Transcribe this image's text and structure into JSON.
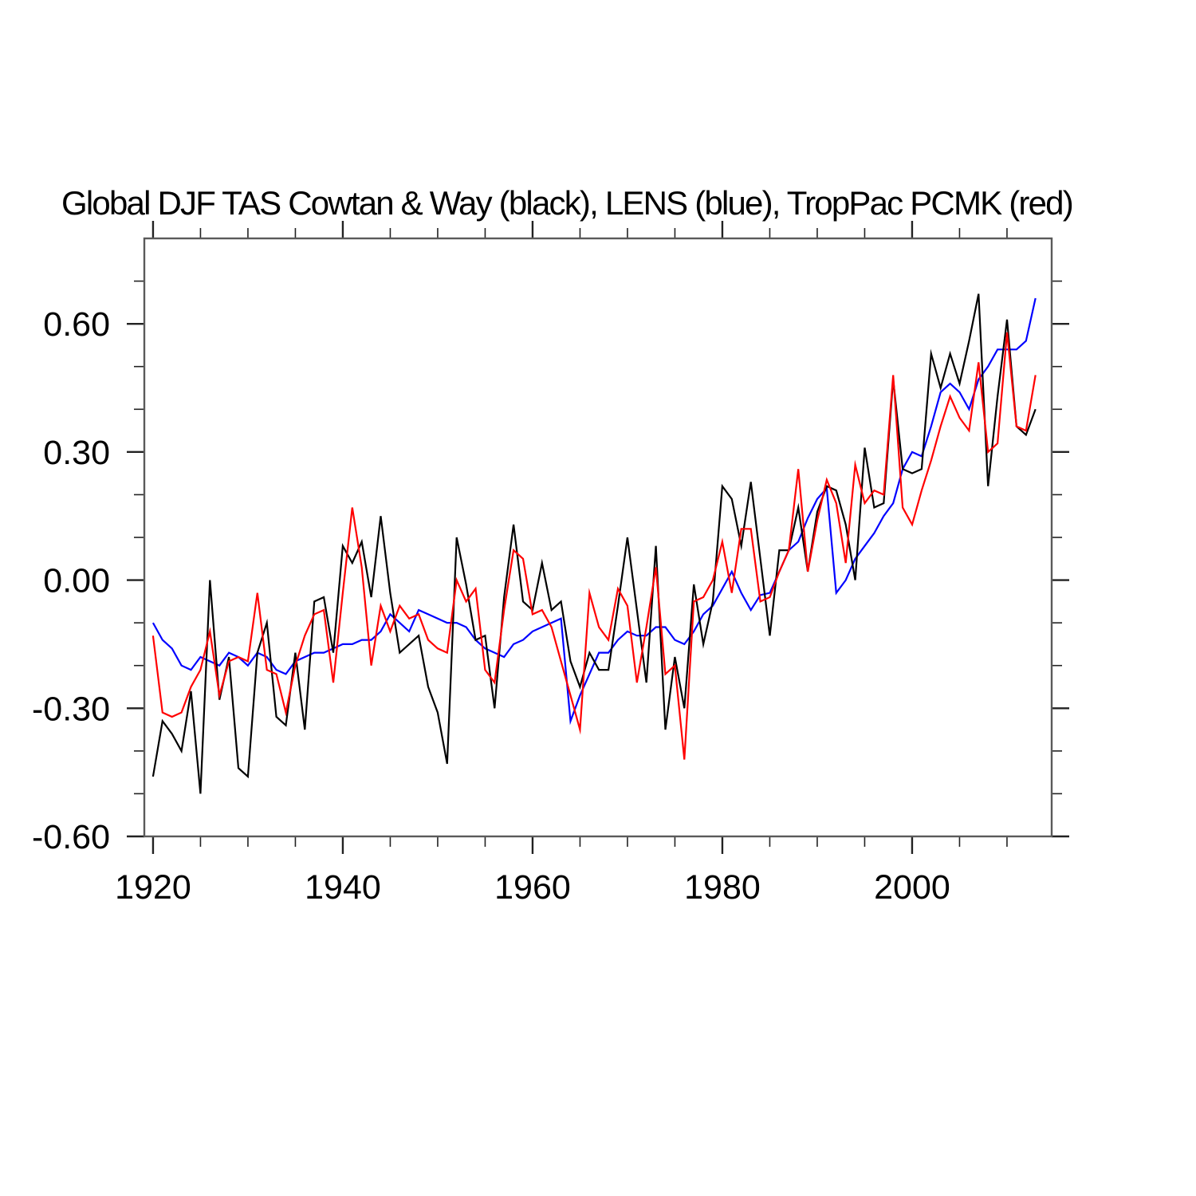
{
  "title": "Global DJF TAS Cowtan & Way (black), LENS (blue), TropPac PCMK (red)",
  "colors": {
    "background": "#ffffff",
    "frame": "#5a5a5a",
    "ticks": "#222222",
    "labels": "#000000",
    "series_black": "#000000",
    "series_blue": "#0000ff",
    "series_red": "#ff0000"
  },
  "chart_data": {
    "type": "line",
    "title": "Global DJF TAS Cowtan & Way (black), LENS (blue), TropPac PCMK (red)",
    "xlabel": "",
    "ylabel": "",
    "grid": false,
    "legend_position": "none (series identified in title)",
    "xlim": [
      1919.08,
      2014.71
    ],
    "ylim": [
      -0.6,
      0.8
    ],
    "x_major_ticks": [
      1920,
      1940,
      1960,
      1980,
      2000
    ],
    "x_tick_labels": [
      "1920",
      "1940",
      "1960",
      "1980",
      "2000"
    ],
    "x_minor_step": 5,
    "y_major_ticks": [
      0.6,
      0.3,
      0.0,
      -0.3,
      -0.6
    ],
    "y_tick_labels": [
      "0.60",
      "0.30",
      "0.00",
      "-0.30",
      "-0.60"
    ],
    "y_minor_step": 0.1,
    "years": [
      1920,
      1921,
      1922,
      1923,
      1924,
      1925,
      1926,
      1927,
      1928,
      1929,
      1930,
      1931,
      1932,
      1933,
      1934,
      1935,
      1936,
      1937,
      1938,
      1939,
      1940,
      1941,
      1942,
      1943,
      1944,
      1945,
      1946,
      1947,
      1948,
      1949,
      1950,
      1951,
      1952,
      1953,
      1954,
      1955,
      1956,
      1957,
      1958,
      1959,
      1960,
      1961,
      1962,
      1963,
      1964,
      1965,
      1966,
      1967,
      1968,
      1969,
      1970,
      1971,
      1972,
      1973,
      1974,
      1975,
      1976,
      1977,
      1978,
      1979,
      1980,
      1981,
      1982,
      1983,
      1984,
      1985,
      1986,
      1987,
      1988,
      1989,
      1990,
      1991,
      1992,
      1993,
      1994,
      1995,
      1996,
      1997,
      1998,
      1999,
      2000,
      2001,
      2002,
      2003,
      2004,
      2005,
      2006,
      2007,
      2008,
      2009,
      2010,
      2011,
      2012,
      2013
    ],
    "series": [
      {
        "name": "Cowtan & Way",
        "color": "#000000",
        "values": [
          -0.46,
          -0.33,
          -0.36,
          -0.4,
          -0.26,
          -0.5,
          0.0,
          -0.28,
          -0.18,
          -0.44,
          -0.46,
          -0.17,
          -0.1,
          -0.32,
          -0.34,
          -0.17,
          -0.35,
          -0.05,
          -0.04,
          -0.17,
          0.08,
          0.04,
          0.09,
          -0.04,
          0.15,
          -0.03,
          -0.17,
          -0.15,
          -0.13,
          -0.25,
          -0.31,
          -0.43,
          0.1,
          -0.01,
          -0.14,
          -0.13,
          -0.3,
          -0.04,
          0.13,
          -0.05,
          -0.07,
          0.04,
          -0.07,
          -0.05,
          -0.19,
          -0.25,
          -0.17,
          -0.21,
          -0.21,
          -0.06,
          0.1,
          -0.07,
          -0.24,
          0.08,
          -0.35,
          -0.18,
          -0.3,
          -0.01,
          -0.15,
          -0.05,
          0.22,
          0.19,
          0.08,
          0.23,
          0.05,
          -0.13,
          0.07,
          0.07,
          0.17,
          0.02,
          0.16,
          0.22,
          0.21,
          0.13,
          0.0,
          0.31,
          0.17,
          0.18,
          0.47,
          0.26,
          0.25,
          0.26,
          0.53,
          0.45,
          0.53,
          0.46,
          0.56,
          0.67,
          0.22,
          0.43,
          0.61,
          0.36,
          0.34,
          0.4
        ]
      },
      {
        "name": "LENS",
        "color": "#0000ff",
        "values": [
          -0.1,
          -0.14,
          -0.16,
          -0.2,
          -0.21,
          -0.18,
          -0.19,
          -0.2,
          -0.17,
          -0.18,
          -0.2,
          -0.17,
          -0.18,
          -0.21,
          -0.22,
          -0.19,
          -0.18,
          -0.17,
          -0.17,
          -0.16,
          -0.15,
          -0.15,
          -0.14,
          -0.14,
          -0.12,
          -0.08,
          -0.1,
          -0.12,
          -0.07,
          -0.08,
          -0.09,
          -0.1,
          -0.1,
          -0.11,
          -0.14,
          -0.16,
          -0.17,
          -0.18,
          -0.15,
          -0.14,
          -0.12,
          -0.11,
          -0.1,
          -0.09,
          -0.33,
          -0.27,
          -0.22,
          -0.17,
          -0.17,
          -0.14,
          -0.12,
          -0.13,
          -0.13,
          -0.11,
          -0.11,
          -0.14,
          -0.15,
          -0.12,
          -0.08,
          -0.06,
          -0.02,
          0.02,
          -0.03,
          -0.07,
          -0.035,
          -0.03,
          0.02,
          0.07,
          0.09,
          0.145,
          0.19,
          0.215,
          -0.03,
          0.0,
          0.05,
          0.08,
          0.11,
          0.15,
          0.18,
          0.26,
          0.3,
          0.29,
          0.36,
          0.44,
          0.46,
          0.44,
          0.4,
          0.47,
          0.5,
          0.54,
          0.54,
          0.54,
          0.56,
          0.66
        ]
      },
      {
        "name": "TropPac PCMK",
        "color": "#ff0000",
        "values": [
          -0.13,
          -0.31,
          -0.32,
          -0.31,
          -0.25,
          -0.21,
          -0.12,
          -0.27,
          -0.19,
          -0.18,
          -0.19,
          -0.03,
          -0.21,
          -0.22,
          -0.31,
          -0.2,
          -0.13,
          -0.08,
          -0.07,
          -0.24,
          -0.03,
          0.17,
          0.03,
          -0.2,
          -0.06,
          -0.12,
          -0.06,
          -0.09,
          -0.08,
          -0.14,
          -0.16,
          -0.17,
          0.0,
          -0.05,
          -0.02,
          -0.21,
          -0.24,
          -0.07,
          0.07,
          0.05,
          -0.08,
          -0.07,
          -0.11,
          -0.19,
          -0.27,
          -0.35,
          -0.03,
          -0.11,
          -0.14,
          -0.02,
          -0.06,
          -0.24,
          -0.11,
          0.03,
          -0.22,
          -0.2,
          -0.42,
          -0.05,
          -0.04,
          0.0,
          0.09,
          -0.03,
          0.12,
          0.12,
          -0.05,
          -0.04,
          0.02,
          0.07,
          0.26,
          0.02,
          0.14,
          0.235,
          0.18,
          0.04,
          0.27,
          0.18,
          0.21,
          0.2,
          0.48,
          0.17,
          0.13,
          0.21,
          0.28,
          0.36,
          0.43,
          0.38,
          0.35,
          0.51,
          0.3,
          0.32,
          0.58,
          0.36,
          0.35,
          0.48
        ]
      }
    ]
  }
}
